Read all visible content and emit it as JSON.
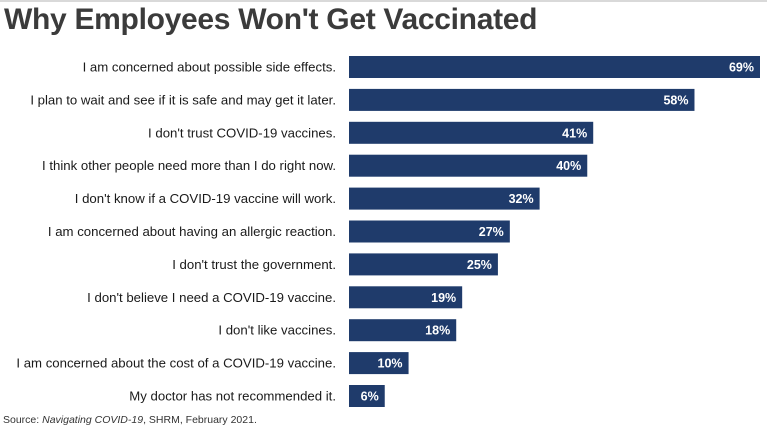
{
  "title": "Why Employees Won't Get Vaccinated",
  "source": {
    "prefix": "Source: ",
    "publication": "Navigating COVID-19",
    "suffix": ", SHRM, February 2021."
  },
  "colors": {
    "bar": "#1f3b6b",
    "label_text": "#1a1a1a",
    "value_text": "#ffffff",
    "title": "#3b3b3b"
  },
  "chart_data": {
    "type": "bar",
    "orientation": "horizontal",
    "title": "Why Employees Won't Get Vaccinated",
    "xlabel": "",
    "ylabel": "",
    "xlim": [
      0,
      69
    ],
    "grid": false,
    "legend": "none",
    "categories": [
      "I am concerned about possible side effects.",
      "I plan to wait and see if it is safe and may get it later.",
      "I don't trust COVID-19 vaccines.",
      "I think other people need more than I do right now.",
      "I don't know if a COVID-19 vaccine will work.",
      "I am concerned about having an allergic reaction.",
      "I don't trust the government.",
      "I don't believe I need a COVID-19 vaccine.",
      "I don't like vaccines.",
      "I am concerned about the cost of a COVID-19 vaccine.",
      "My doctor has not recommended it."
    ],
    "values": [
      69,
      58,
      41,
      40,
      32,
      27,
      25,
      19,
      18,
      10,
      6
    ],
    "value_labels": [
      "69%",
      "58%",
      "41%",
      "40%",
      "32%",
      "27%",
      "25%",
      "19%",
      "18%",
      "10%",
      "6%"
    ]
  }
}
